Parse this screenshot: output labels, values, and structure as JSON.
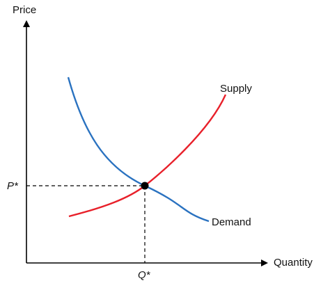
{
  "diagram": {
    "y_axis_label": "Price",
    "x_axis_label": "Quantity",
    "supply_label": "Supply",
    "demand_label": "Demand",
    "equilibrium_price_label": "P*",
    "equilibrium_quantity_label": "Q*"
  },
  "colors": {
    "axis": "#000000",
    "supply": "#e8202a",
    "demand": "#2a72c0",
    "guide": "#000000",
    "point": "#000000"
  }
}
